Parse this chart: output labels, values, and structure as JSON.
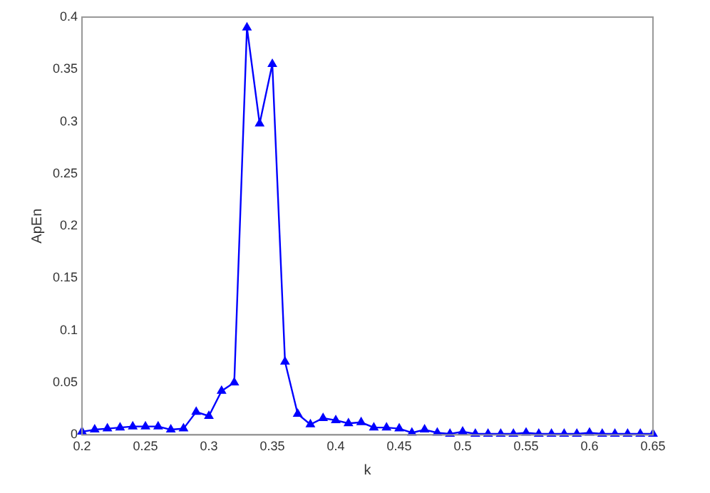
{
  "chart_data": {
    "type": "line",
    "xlabel": "k",
    "ylabel": "ApEn",
    "x": [
      0.2,
      0.21,
      0.22,
      0.23,
      0.24,
      0.25,
      0.26,
      0.27,
      0.28,
      0.29,
      0.3,
      0.31,
      0.32,
      0.33,
      0.34,
      0.35,
      0.36,
      0.37,
      0.38,
      0.39,
      0.4,
      0.41,
      0.42,
      0.43,
      0.44,
      0.45,
      0.46,
      0.47,
      0.48,
      0.49,
      0.5,
      0.51,
      0.52,
      0.53,
      0.54,
      0.55,
      0.56,
      0.57,
      0.58,
      0.59,
      0.6,
      0.61,
      0.62,
      0.63,
      0.64,
      0.65
    ],
    "series": [
      {
        "color": "#0000ff",
        "values": [
          0.003,
          0.005,
          0.006,
          0.007,
          0.008,
          0.008,
          0.008,
          0.005,
          0.006,
          0.022,
          0.018,
          0.042,
          0.05,
          0.39,
          0.298,
          0.355,
          0.07,
          0.02,
          0.01,
          0.016,
          0.014,
          0.011,
          0.012,
          0.007,
          0.007,
          0.006,
          0.002,
          0.005,
          0.002,
          0.001,
          0.003,
          0.001,
          0.001,
          0.001,
          0.001,
          0.002,
          0.001,
          0.001,
          0.001,
          0.001,
          0.002,
          0.001,
          0.001,
          0.001,
          0.001,
          0.001
        ]
      }
    ],
    "xlim": [
      0.2,
      0.65
    ],
    "xticks": [
      0.2,
      0.25,
      0.3,
      0.35,
      0.4,
      0.45,
      0.5,
      0.55,
      0.6,
      0.65
    ],
    "ylim": [
      0,
      0.4
    ],
    "yticks": [
      0,
      0.05,
      0.1,
      0.15,
      0.2,
      0.25,
      0.3,
      0.35,
      0.4
    ],
    "grid": false,
    "legend": false,
    "marker": "triangle",
    "line_style": "solid"
  }
}
